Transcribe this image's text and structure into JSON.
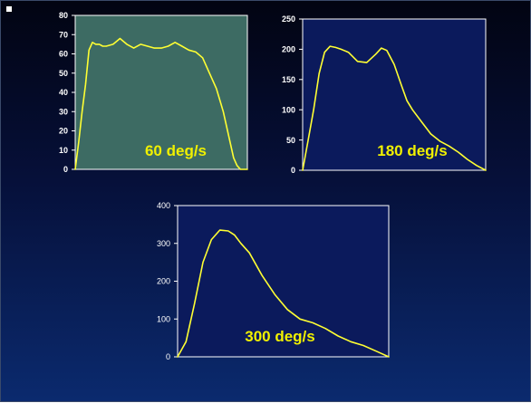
{
  "colors": {
    "background_top": "#020412",
    "background_bottom": "#0b2a6e",
    "line": "#ffff33",
    "axis": "#ffffff",
    "label": "#f0f000"
  },
  "chart_data": [
    {
      "type": "line",
      "label": "60 deg/s",
      "plot_fill": "#3d6b63",
      "ylim": [
        0,
        80
      ],
      "yticks": [
        "0",
        "10",
        "20",
        "30",
        "40",
        "50",
        "60",
        "70",
        "80"
      ],
      "grid": false,
      "x": [
        0,
        2,
        4,
        6,
        8,
        10,
        12,
        14,
        16,
        18,
        22,
        26,
        30,
        34,
        38,
        42,
        46,
        50,
        54,
        58,
        62,
        66,
        70,
        74,
        78,
        82,
        84,
        86,
        88,
        90,
        92,
        94,
        96,
        98,
        100
      ],
      "values": [
        0,
        14,
        30,
        44,
        62,
        66,
        65,
        65,
        64,
        64,
        65,
        68,
        65,
        63,
        65,
        64,
        63,
        63,
        64,
        66,
        64,
        62,
        61,
        58,
        50,
        42,
        36,
        30,
        22,
        14,
        6,
        2,
        0,
        0,
        0
      ]
    },
    {
      "type": "line",
      "label": "180 deg/s",
      "plot_fill": "#0b1a5c",
      "ylim": [
        0,
        250
      ],
      "yticks": [
        "0",
        "50",
        "100",
        "150",
        "200",
        "250"
      ],
      "grid": false,
      "x": [
        0,
        3,
        6,
        9,
        12,
        15,
        18,
        21,
        25,
        30,
        35,
        40,
        43,
        46,
        50,
        54,
        57,
        60,
        65,
        70,
        75,
        80,
        85,
        90,
        95,
        100
      ],
      "values": [
        0,
        50,
        100,
        160,
        195,
        205,
        203,
        200,
        195,
        180,
        178,
        192,
        202,
        198,
        175,
        140,
        115,
        100,
        80,
        60,
        48,
        40,
        30,
        18,
        8,
        0
      ]
    },
    {
      "type": "line",
      "label": "300 deg/s",
      "plot_fill": "#0b1a5c",
      "ylim": [
        0,
        400
      ],
      "yticks": [
        "0",
        "100",
        "200",
        "300",
        "400"
      ],
      "grid": false,
      "x": [
        0,
        4,
        8,
        12,
        16,
        20,
        24,
        27,
        30,
        34,
        40,
        46,
        52,
        58,
        64,
        70,
        76,
        82,
        88,
        94,
        100
      ],
      "values": [
        0,
        40,
        140,
        250,
        310,
        335,
        333,
        322,
        300,
        275,
        215,
        165,
        125,
        100,
        90,
        75,
        55,
        40,
        30,
        15,
        0
      ]
    }
  ]
}
